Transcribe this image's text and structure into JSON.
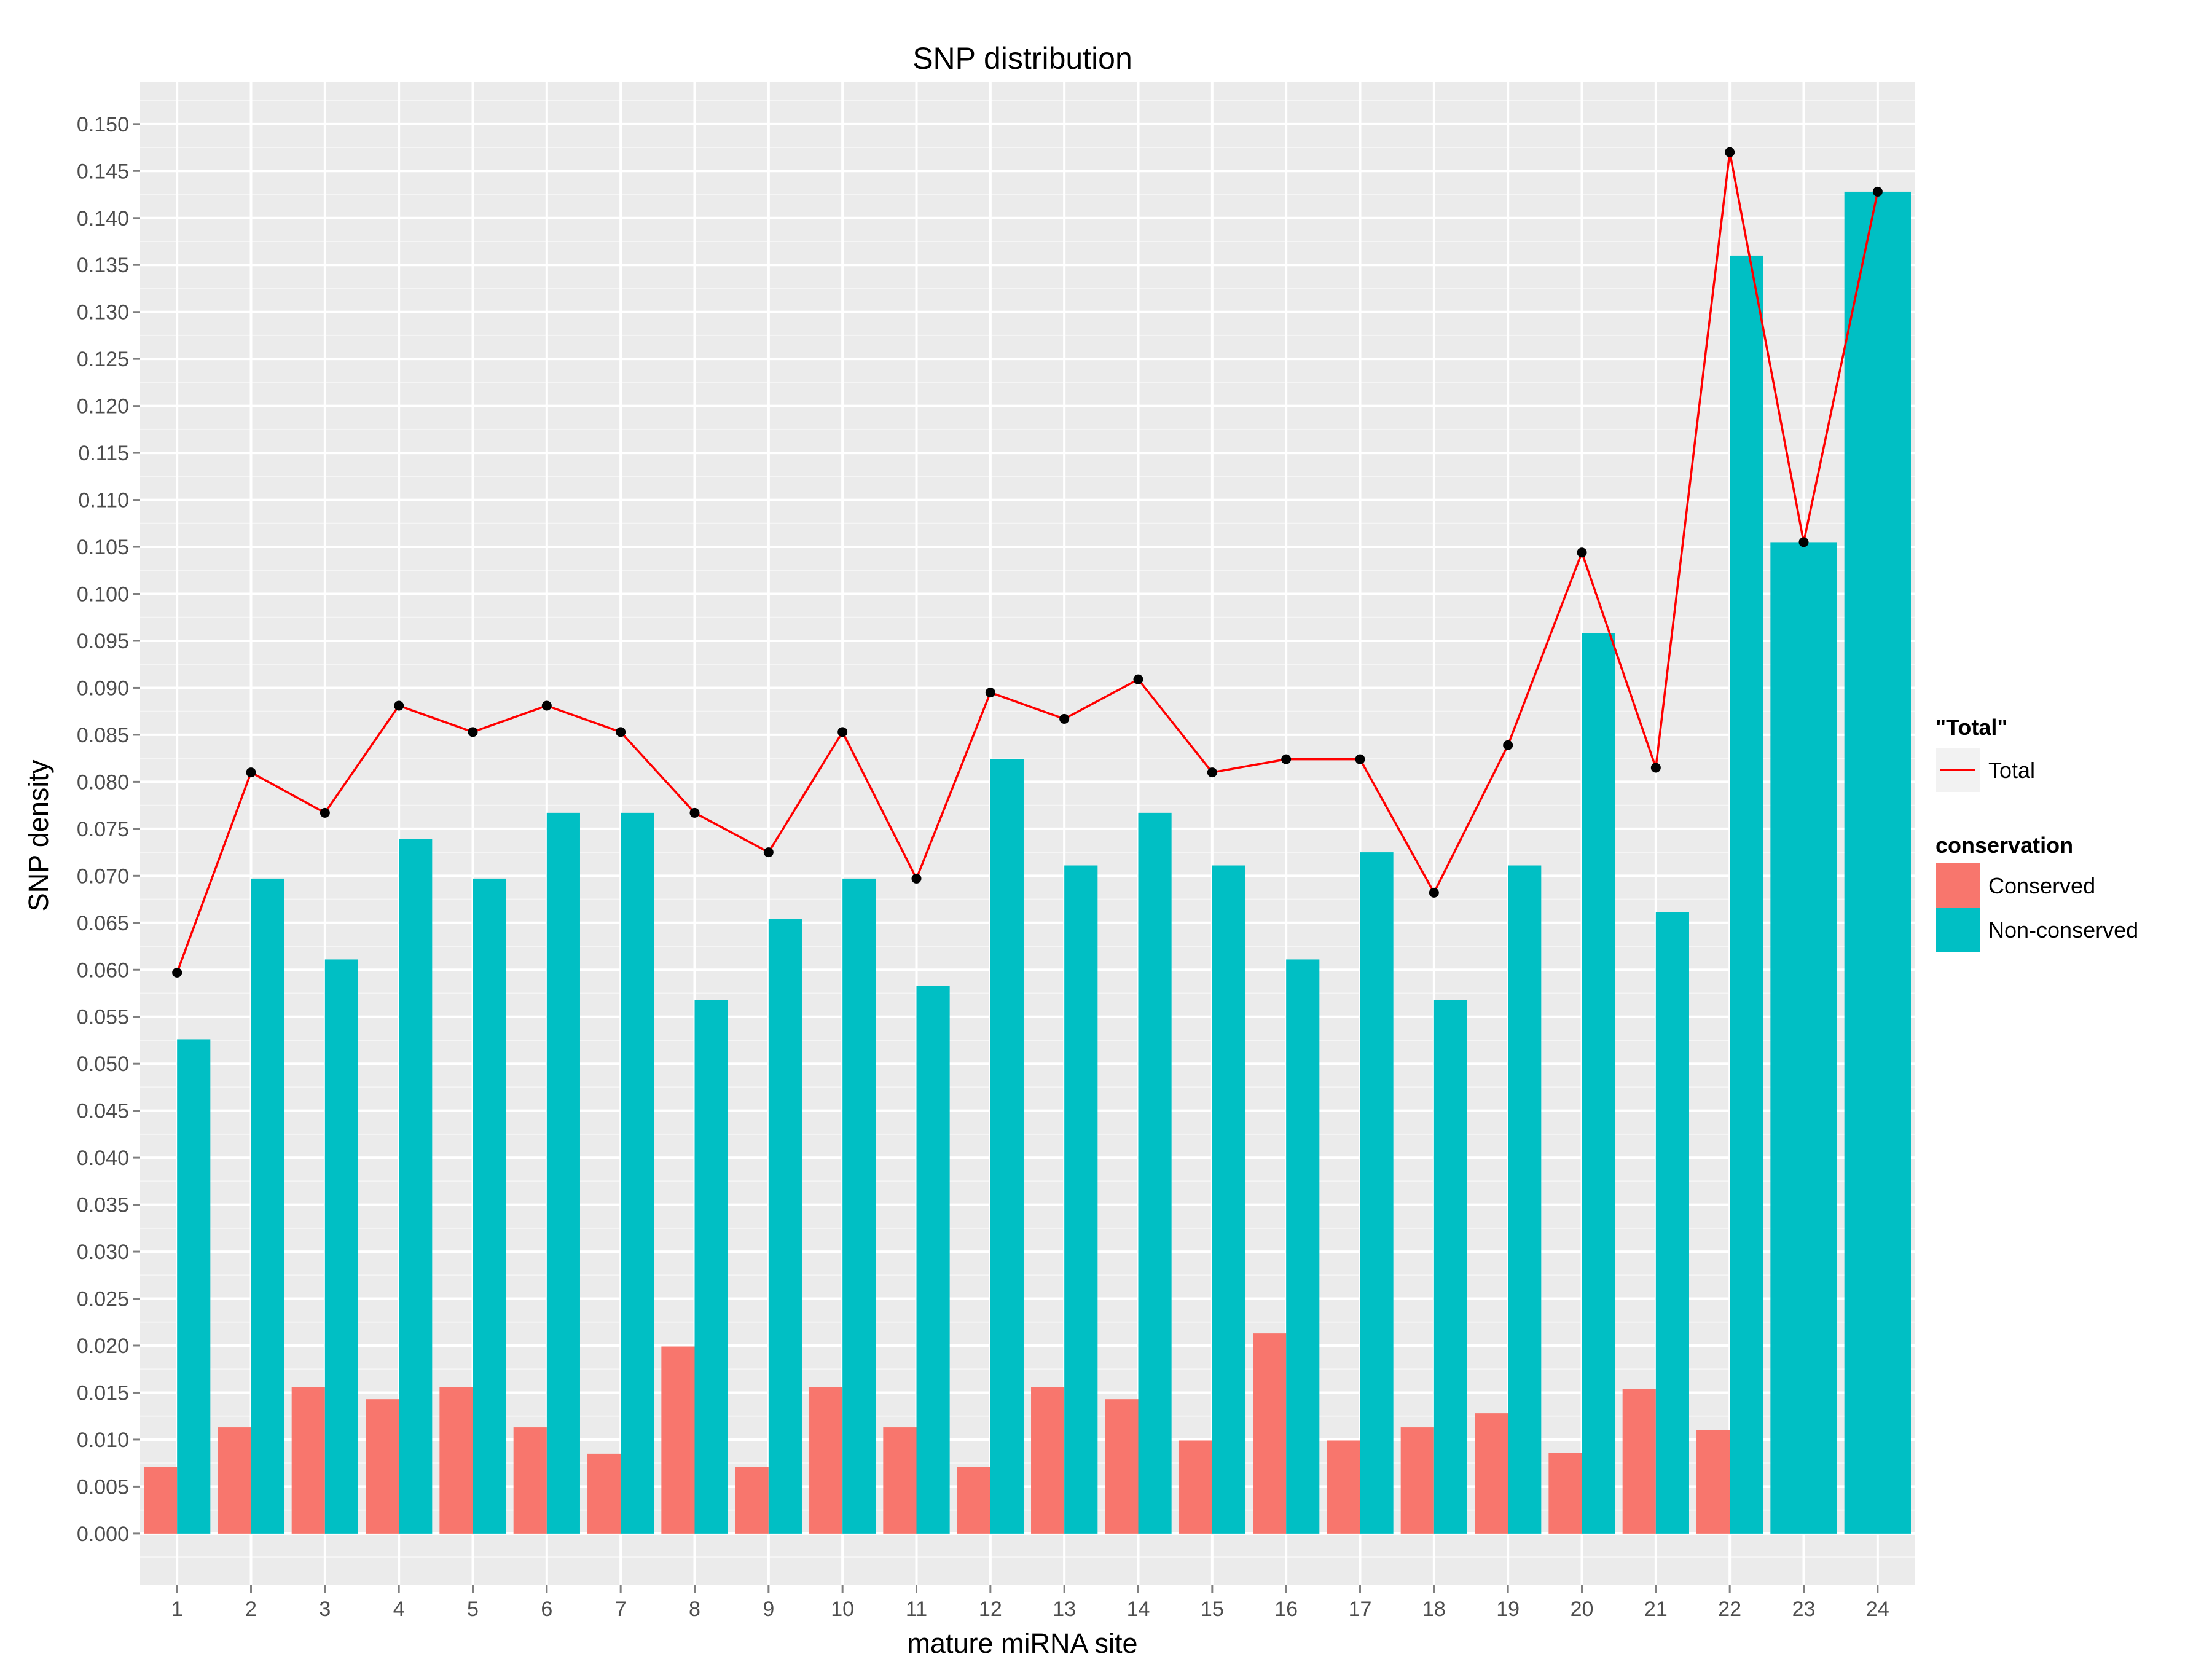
{
  "chart_data": {
    "type": "bar",
    "title": "SNP distribution",
    "xlabel": "mature miRNA site",
    "ylabel": "SNP density",
    "categories": [
      "1",
      "2",
      "3",
      "4",
      "5",
      "6",
      "7",
      "8",
      "9",
      "10",
      "11",
      "12",
      "13",
      "14",
      "15",
      "16",
      "17",
      "18",
      "19",
      "20",
      "21",
      "22",
      "23",
      "24"
    ],
    "ylim": [
      -0.0055,
      0.1545
    ],
    "yticks": [
      "0.000",
      "0.005",
      "0.010",
      "0.015",
      "0.020",
      "0.025",
      "0.030",
      "0.035",
      "0.040",
      "0.045",
      "0.050",
      "0.055",
      "0.060",
      "0.065",
      "0.070",
      "0.075",
      "0.080",
      "0.085",
      "0.090",
      "0.095",
      "0.100",
      "0.105",
      "0.110",
      "0.115",
      "0.120",
      "0.125",
      "0.130",
      "0.135",
      "0.140",
      "0.145",
      "0.150"
    ],
    "grid": true,
    "background": "#ebebeb",
    "series": [
      {
        "name": "Conserved",
        "kind": "bar",
        "color": "#f8766d",
        "values": [
          0.0071,
          0.0113,
          0.0156,
          0.0143,
          0.0156,
          0.0113,
          0.0085,
          0.0199,
          0.0071,
          0.0156,
          0.0113,
          0.0071,
          0.0156,
          0.0143,
          0.0099,
          0.0213,
          0.0099,
          0.0113,
          0.0128,
          0.0086,
          0.0154,
          0.011,
          null,
          null
        ]
      },
      {
        "name": "Non-conserved",
        "kind": "bar",
        "color": "#00bfc4",
        "values": [
          0.0526,
          0.0697,
          0.0611,
          0.0739,
          0.0697,
          0.0767,
          0.0767,
          0.0568,
          0.0654,
          0.0697,
          0.0583,
          0.0824,
          0.0711,
          0.0767,
          0.0711,
          0.0611,
          0.0725,
          0.0568,
          0.0711,
          0.0958,
          0.0661,
          0.136,
          0.1055,
          0.1428
        ]
      },
      {
        "name": "Total",
        "kind": "line",
        "color": "#ff0000",
        "values": [
          0.0597,
          0.081,
          0.0767,
          0.0881,
          0.0853,
          0.0881,
          0.0853,
          0.0767,
          0.0725,
          0.0853,
          0.0697,
          0.0895,
          0.0867,
          0.0909,
          0.081,
          0.0824,
          0.0824,
          0.0682,
          0.0839,
          0.1044,
          0.0815,
          0.147,
          0.1055,
          0.1428
        ]
      }
    ],
    "legend": {
      "placement": "right",
      "line_title": "\"Total\"",
      "line_items": [
        {
          "label": "Total",
          "color": "#ff0000"
        }
      ],
      "fill_title": "conservation",
      "fill_items": [
        {
          "label": "Conserved",
          "color": "#f8766d"
        },
        {
          "label": "Non-conserved",
          "color": "#00bfc4"
        }
      ]
    }
  }
}
